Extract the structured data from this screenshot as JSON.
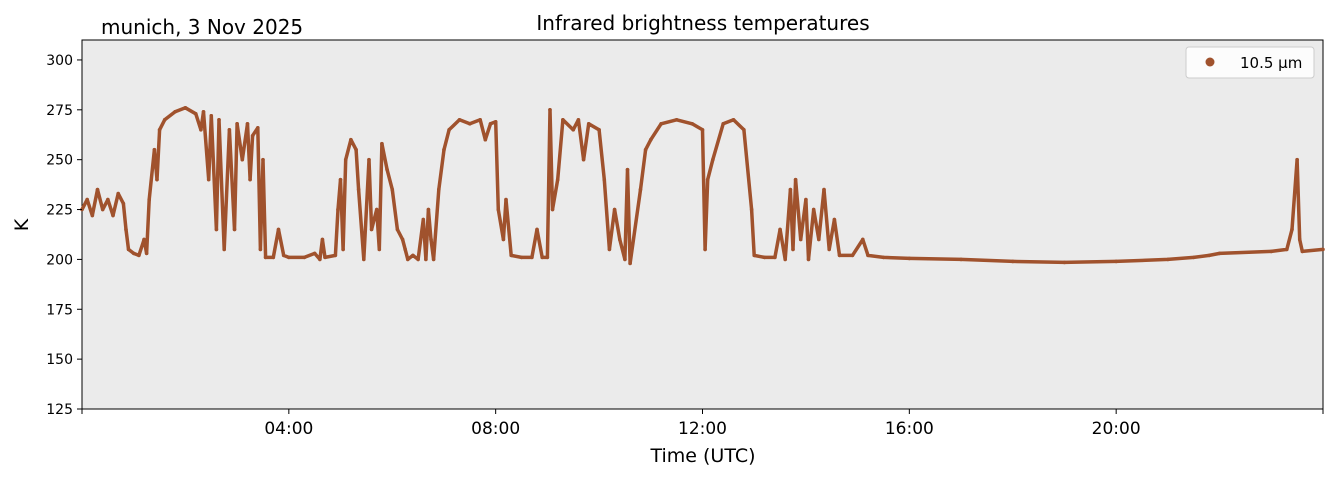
{
  "chart_data": {
    "type": "scatter",
    "title": "Infrared brightness temperatures",
    "subtitle": "munich, 3 Nov 2025",
    "xlabel": "Time (UTC)",
    "ylabel": "K",
    "xlim_hours": [
      0,
      24
    ],
    "ylim": [
      125,
      310
    ],
    "yticks": [
      125,
      150,
      175,
      200,
      225,
      250,
      275,
      300
    ],
    "xticks": [
      {
        "hour": 4,
        "label": "04:00"
      },
      {
        "hour": 8,
        "label": "08:00"
      },
      {
        "hour": 12,
        "label": "12:00"
      },
      {
        "hour": 16,
        "label": "16:00"
      },
      {
        "hour": 20,
        "label": "20:00"
      }
    ],
    "grid": false,
    "background": "#ebebeb",
    "legend": {
      "placement": "top-right",
      "entries": [
        {
          "label": "10.5 µm",
          "color": "#a0522d"
        }
      ]
    },
    "series": [
      {
        "name": "10.5 µm",
        "color": "#a0522d",
        "points": [
          [
            0.0,
            225
          ],
          [
            0.1,
            230
          ],
          [
            0.2,
            222
          ],
          [
            0.3,
            235
          ],
          [
            0.4,
            225
          ],
          [
            0.5,
            230
          ],
          [
            0.6,
            222
          ],
          [
            0.7,
            233
          ],
          [
            0.8,
            228
          ],
          [
            0.85,
            215
          ],
          [
            0.9,
            205
          ],
          [
            1.0,
            203
          ],
          [
            1.1,
            202
          ],
          [
            1.2,
            210
          ],
          [
            1.25,
            203
          ],
          [
            1.3,
            230
          ],
          [
            1.4,
            255
          ],
          [
            1.45,
            240
          ],
          [
            1.5,
            265
          ],
          [
            1.6,
            270
          ],
          [
            1.8,
            274
          ],
          [
            2.0,
            276
          ],
          [
            2.2,
            273
          ],
          [
            2.3,
            265
          ],
          [
            2.35,
            274
          ],
          [
            2.45,
            240
          ],
          [
            2.5,
            272
          ],
          [
            2.6,
            215
          ],
          [
            2.65,
            270
          ],
          [
            2.75,
            205
          ],
          [
            2.85,
            265
          ],
          [
            2.95,
            215
          ],
          [
            3.0,
            268
          ],
          [
            3.1,
            250
          ],
          [
            3.2,
            268
          ],
          [
            3.25,
            240
          ],
          [
            3.3,
            262
          ],
          [
            3.4,
            266
          ],
          [
            3.45,
            205
          ],
          [
            3.5,
            250
          ],
          [
            3.55,
            201
          ],
          [
            3.7,
            201
          ],
          [
            3.8,
            215
          ],
          [
            3.9,
            202
          ],
          [
            4.0,
            201
          ],
          [
            4.3,
            201
          ],
          [
            4.5,
            203
          ],
          [
            4.6,
            200
          ],
          [
            4.65,
            210
          ],
          [
            4.7,
            201
          ],
          [
            4.9,
            202
          ],
          [
            4.95,
            225
          ],
          [
            5.0,
            240
          ],
          [
            5.05,
            205
          ],
          [
            5.1,
            250
          ],
          [
            5.2,
            260
          ],
          [
            5.3,
            255
          ],
          [
            5.35,
            235
          ],
          [
            5.45,
            200
          ],
          [
            5.55,
            250
          ],
          [
            5.6,
            215
          ],
          [
            5.7,
            225
          ],
          [
            5.75,
            205
          ],
          [
            5.8,
            258
          ],
          [
            5.9,
            245
          ],
          [
            6.0,
            235
          ],
          [
            6.1,
            215
          ],
          [
            6.2,
            210
          ],
          [
            6.25,
            205
          ],
          [
            6.3,
            200
          ],
          [
            6.4,
            202
          ],
          [
            6.5,
            200
          ],
          [
            6.6,
            220
          ],
          [
            6.65,
            200
          ],
          [
            6.7,
            225
          ],
          [
            6.75,
            210
          ],
          [
            6.8,
            200
          ],
          [
            6.9,
            235
          ],
          [
            7.0,
            255
          ],
          [
            7.1,
            265
          ],
          [
            7.3,
            270
          ],
          [
            7.5,
            268
          ],
          [
            7.7,
            270
          ],
          [
            7.8,
            260
          ],
          [
            7.9,
            268
          ],
          [
            8.0,
            269
          ],
          [
            8.05,
            225
          ],
          [
            8.15,
            210
          ],
          [
            8.2,
            230
          ],
          [
            8.3,
            202
          ],
          [
            8.5,
            201
          ],
          [
            8.7,
            201
          ],
          [
            8.8,
            215
          ],
          [
            8.9,
            201
          ],
          [
            9.0,
            201
          ],
          [
            9.05,
            275
          ],
          [
            9.1,
            225
          ],
          [
            9.2,
            240
          ],
          [
            9.3,
            270
          ],
          [
            9.5,
            265
          ],
          [
            9.6,
            270
          ],
          [
            9.7,
            250
          ],
          [
            9.8,
            268
          ],
          [
            10.0,
            265
          ],
          [
            10.1,
            240
          ],
          [
            10.2,
            205
          ],
          [
            10.3,
            225
          ],
          [
            10.4,
            210
          ],
          [
            10.5,
            200
          ],
          [
            10.55,
            245
          ],
          [
            10.6,
            198
          ],
          [
            10.8,
            235
          ],
          [
            10.9,
            255
          ],
          [
            11.0,
            260
          ],
          [
            11.2,
            268
          ],
          [
            11.5,
            270
          ],
          [
            11.8,
            268
          ],
          [
            12.0,
            265
          ],
          [
            12.05,
            205
          ],
          [
            12.1,
            240
          ],
          [
            12.2,
            250
          ],
          [
            12.4,
            268
          ],
          [
            12.6,
            270
          ],
          [
            12.8,
            265
          ],
          [
            12.95,
            225
          ],
          [
            13.0,
            202
          ],
          [
            13.2,
            201
          ],
          [
            13.4,
            201
          ],
          [
            13.5,
            215
          ],
          [
            13.6,
            200
          ],
          [
            13.7,
            235
          ],
          [
            13.75,
            205
          ],
          [
            13.8,
            240
          ],
          [
            13.9,
            210
          ],
          [
            14.0,
            230
          ],
          [
            14.05,
            200
          ],
          [
            14.15,
            225
          ],
          [
            14.25,
            210
          ],
          [
            14.35,
            235
          ],
          [
            14.45,
            205
          ],
          [
            14.55,
            220
          ],
          [
            14.65,
            202
          ],
          [
            14.9,
            202
          ],
          [
            15.1,
            210
          ],
          [
            15.2,
            202
          ],
          [
            15.5,
            201
          ],
          [
            16.0,
            200.5
          ],
          [
            17.0,
            200
          ],
          [
            18.0,
            199
          ],
          [
            19.0,
            198.5
          ],
          [
            20.0,
            199
          ],
          [
            21.0,
            200
          ],
          [
            21.5,
            201
          ],
          [
            21.8,
            202
          ],
          [
            22.0,
            203
          ],
          [
            23.0,
            204
          ],
          [
            23.3,
            205
          ],
          [
            23.4,
            215
          ],
          [
            23.5,
            250
          ],
          [
            23.55,
            210
          ],
          [
            23.6,
            204
          ],
          [
            24.0,
            205
          ]
        ]
      }
    ]
  }
}
